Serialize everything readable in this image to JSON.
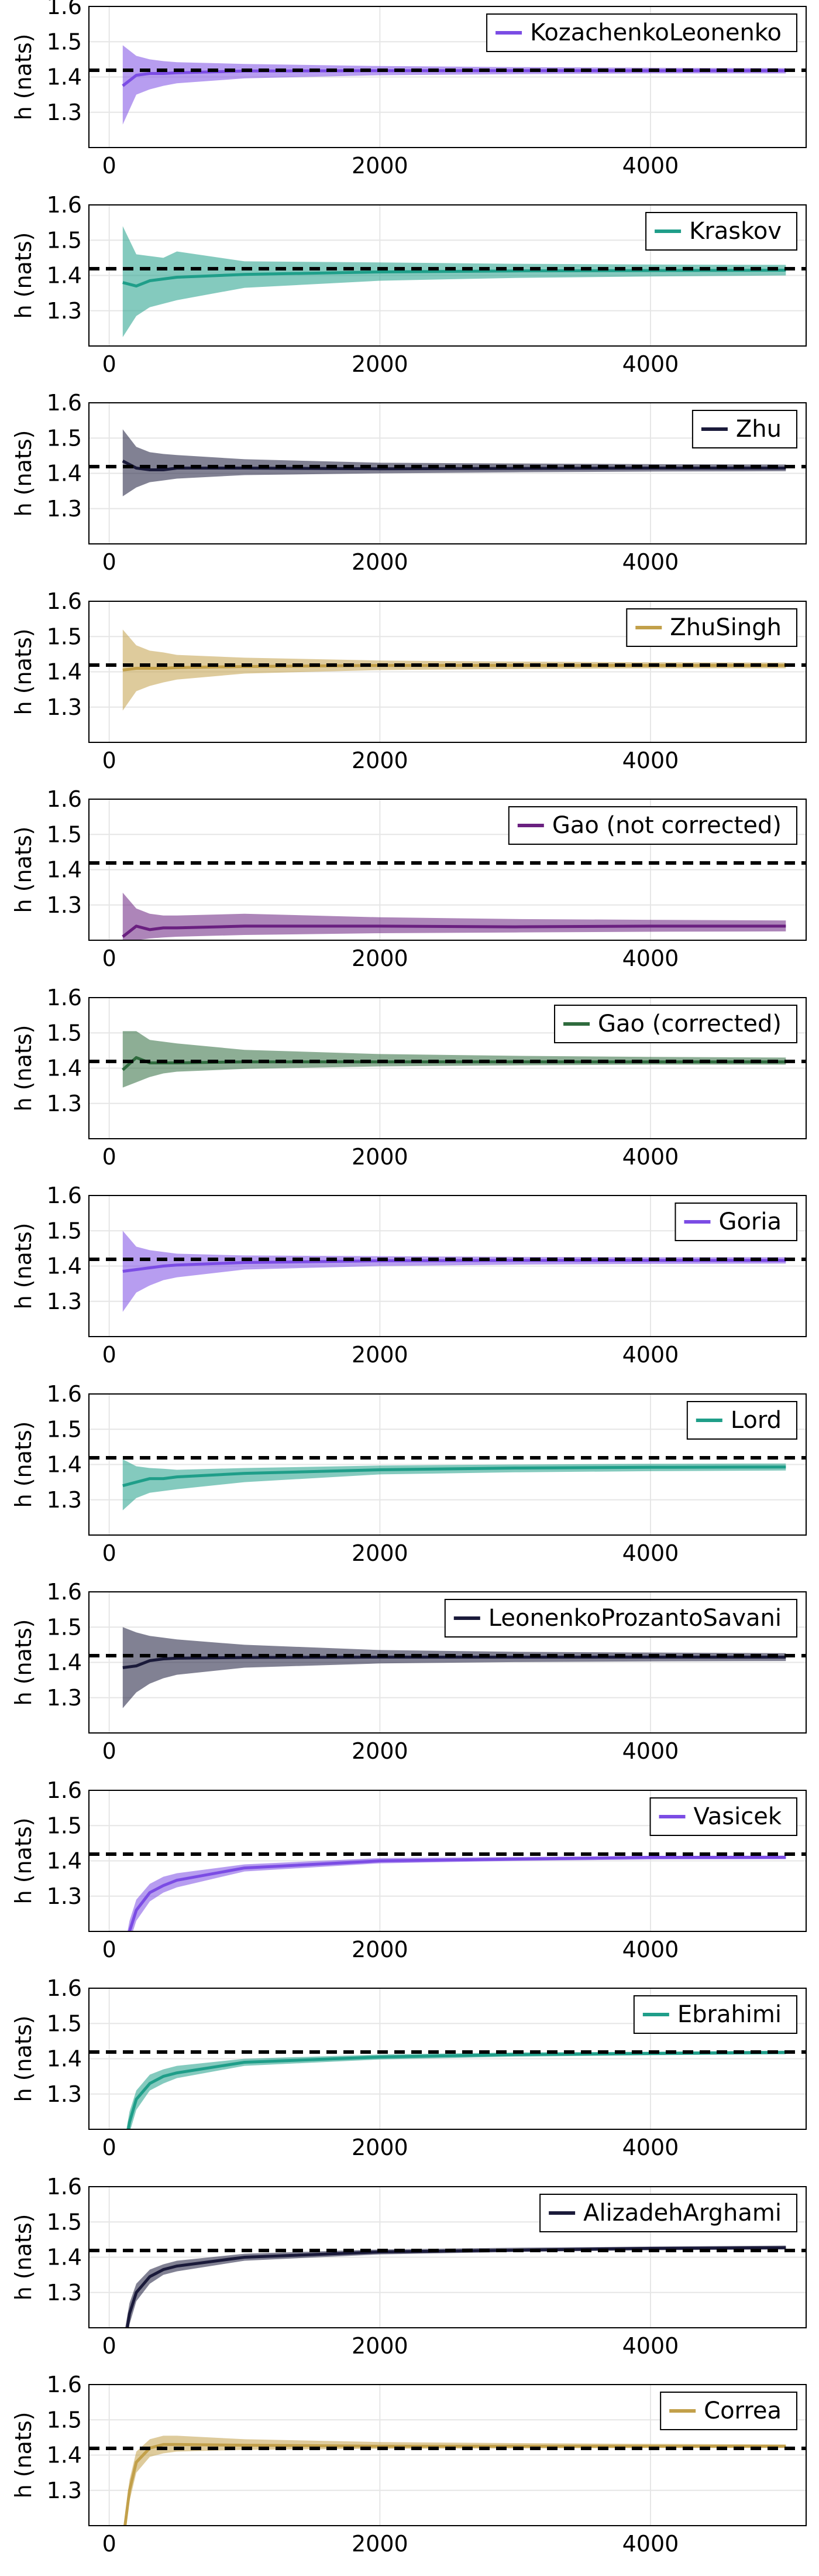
{
  "chart_data": [
    {
      "type": "line",
      "ylabel": "h (nats)",
      "xlim": [
        -150,
        5150
      ],
      "ylim": [
        1.2,
        1.6
      ],
      "xticks": [
        0,
        2000,
        4000
      ],
      "yticks": [
        1.3,
        1.4,
        1.5,
        1.6
      ],
      "reference_value": 1.419,
      "color": "#7b4ce4",
      "series": [
        {
          "name": "KozachenkoLeonenko",
          "x": [
            100,
            200,
            300,
            400,
            500,
            1000,
            2000,
            3000,
            4000,
            5000
          ],
          "y": [
            1.375,
            1.405,
            1.41,
            1.41,
            1.412,
            1.417,
            1.418,
            1.418,
            1.418,
            1.418
          ],
          "lower": [
            1.265,
            1.35,
            1.365,
            1.375,
            1.382,
            1.396,
            1.405,
            1.408,
            1.41,
            1.41
          ],
          "upper": [
            1.49,
            1.46,
            1.45,
            1.445,
            1.442,
            1.437,
            1.431,
            1.428,
            1.426,
            1.425
          ]
        }
      ]
    },
    {
      "type": "line",
      "ylabel": "h (nats)",
      "xlim": [
        -150,
        5150
      ],
      "ylim": [
        1.2,
        1.6
      ],
      "xticks": [
        0,
        2000,
        4000
      ],
      "yticks": [
        1.3,
        1.4,
        1.5,
        1.6
      ],
      "reference_value": 1.419,
      "color": "#1f9e89",
      "series": [
        {
          "name": "Kraskov",
          "x": [
            100,
            200,
            300,
            400,
            500,
            1000,
            2000,
            3000,
            4000,
            5000
          ],
          "y": [
            1.38,
            1.37,
            1.385,
            1.39,
            1.395,
            1.403,
            1.41,
            1.413,
            1.414,
            1.415
          ],
          "lower": [
            1.225,
            1.285,
            1.31,
            1.32,
            1.33,
            1.365,
            1.385,
            1.393,
            1.397,
            1.4
          ],
          "upper": [
            1.54,
            1.46,
            1.455,
            1.45,
            1.468,
            1.44,
            1.437,
            1.433,
            1.431,
            1.43
          ]
        }
      ]
    },
    {
      "type": "line",
      "ylabel": "h (nats)",
      "xlim": [
        -150,
        5150
      ],
      "ylim": [
        1.2,
        1.6
      ],
      "xticks": [
        0,
        2000,
        4000
      ],
      "yticks": [
        1.3,
        1.4,
        1.5,
        1.6
      ],
      "reference_value": 1.419,
      "color": "#1a1a3a",
      "series": [
        {
          "name": "Zhu",
          "x": [
            100,
            200,
            300,
            400,
            500,
            1000,
            2000,
            3000,
            4000,
            5000
          ],
          "y": [
            1.435,
            1.415,
            1.41,
            1.41,
            1.415,
            1.415,
            1.413,
            1.414,
            1.415,
            1.415
          ],
          "lower": [
            1.335,
            1.36,
            1.375,
            1.38,
            1.385,
            1.395,
            1.4,
            1.403,
            1.405,
            1.406
          ],
          "upper": [
            1.525,
            1.475,
            1.46,
            1.455,
            1.452,
            1.44,
            1.43,
            1.428,
            1.426,
            1.425
          ]
        }
      ]
    },
    {
      "type": "line",
      "ylabel": "h (nats)",
      "xlim": [
        -150,
        5150
      ],
      "ylim": [
        1.2,
        1.6
      ],
      "xticks": [
        0,
        2000,
        4000
      ],
      "yticks": [
        1.3,
        1.4,
        1.5,
        1.6
      ],
      "reference_value": 1.419,
      "color": "#c2a04a",
      "series": [
        {
          "name": "ZhuSingh",
          "x": [
            100,
            200,
            300,
            400,
            500,
            1000,
            2000,
            3000,
            4000,
            5000
          ],
          "y": [
            1.405,
            1.41,
            1.41,
            1.41,
            1.412,
            1.415,
            1.418,
            1.418,
            1.418,
            1.418
          ],
          "lower": [
            1.29,
            1.345,
            1.36,
            1.37,
            1.378,
            1.395,
            1.405,
            1.408,
            1.41,
            1.41
          ],
          "upper": [
            1.52,
            1.475,
            1.46,
            1.455,
            1.448,
            1.44,
            1.432,
            1.429,
            1.427,
            1.426
          ]
        }
      ]
    },
    {
      "type": "line",
      "ylabel": "h (nats)",
      "xlim": [
        -150,
        5150
      ],
      "ylim": [
        1.2,
        1.6
      ],
      "xticks": [
        0,
        2000,
        4000
      ],
      "yticks": [
        1.3,
        1.4,
        1.5,
        1.6
      ],
      "reference_value": 1.419,
      "color": "#6a2080",
      "series": [
        {
          "name": "Gao (not corrected)",
          "x": [
            100,
            200,
            300,
            400,
            500,
            1000,
            2000,
            3000,
            4000,
            5000
          ],
          "y": [
            1.21,
            1.24,
            1.23,
            1.235,
            1.235,
            1.24,
            1.24,
            1.238,
            1.24,
            1.24
          ],
          "lower": [
            1.195,
            1.2,
            1.205,
            1.208,
            1.21,
            1.215,
            1.22,
            1.222,
            1.224,
            1.225
          ],
          "upper": [
            1.335,
            1.29,
            1.275,
            1.27,
            1.27,
            1.275,
            1.265,
            1.26,
            1.258,
            1.256
          ]
        }
      ]
    },
    {
      "type": "line",
      "ylabel": "h (nats)",
      "xlim": [
        -150,
        5150
      ],
      "ylim": [
        1.2,
        1.6
      ],
      "xticks": [
        0,
        2000,
        4000
      ],
      "yticks": [
        1.3,
        1.4,
        1.5,
        1.6
      ],
      "reference_value": 1.419,
      "color": "#2f6b3e",
      "series": [
        {
          "name": "Gao (corrected)",
          "x": [
            100,
            200,
            300,
            400,
            500,
            1000,
            2000,
            3000,
            4000,
            5000
          ],
          "y": [
            1.395,
            1.43,
            1.415,
            1.415,
            1.415,
            1.418,
            1.418,
            1.418,
            1.418,
            1.418
          ],
          "lower": [
            1.345,
            1.36,
            1.375,
            1.385,
            1.39,
            1.398,
            1.405,
            1.408,
            1.41,
            1.41
          ],
          "upper": [
            1.505,
            1.505,
            1.48,
            1.475,
            1.47,
            1.452,
            1.44,
            1.435,
            1.432,
            1.43
          ]
        }
      ]
    },
    {
      "type": "line",
      "ylabel": "h (nats)",
      "xlim": [
        -150,
        5150
      ],
      "ylim": [
        1.2,
        1.6
      ],
      "xticks": [
        0,
        2000,
        4000
      ],
      "yticks": [
        1.3,
        1.4,
        1.5,
        1.6
      ],
      "reference_value": 1.419,
      "color": "#7b4ce4",
      "series": [
        {
          "name": "Goria",
          "x": [
            100,
            200,
            300,
            400,
            500,
            1000,
            2000,
            3000,
            4000,
            5000
          ],
          "y": [
            1.385,
            1.39,
            1.395,
            1.4,
            1.403,
            1.41,
            1.415,
            1.416,
            1.416,
            1.416
          ],
          "lower": [
            1.27,
            1.325,
            1.345,
            1.36,
            1.368,
            1.39,
            1.4,
            1.404,
            1.406,
            1.407
          ],
          "upper": [
            1.5,
            1.455,
            1.445,
            1.44,
            1.435,
            1.43,
            1.428,
            1.426,
            1.425,
            1.425
          ]
        }
      ]
    },
    {
      "type": "line",
      "ylabel": "h (nats)",
      "xlim": [
        -150,
        5150
      ],
      "ylim": [
        1.2,
        1.6
      ],
      "xticks": [
        0,
        2000,
        4000
      ],
      "yticks": [
        1.3,
        1.4,
        1.5,
        1.6
      ],
      "reference_value": 1.419,
      "color": "#1f9e89",
      "series": [
        {
          "name": "Lord",
          "x": [
            100,
            200,
            300,
            400,
            500,
            1000,
            2000,
            3000,
            4000,
            5000
          ],
          "y": [
            1.34,
            1.35,
            1.36,
            1.36,
            1.365,
            1.375,
            1.385,
            1.39,
            1.392,
            1.393
          ],
          "lower": [
            1.27,
            1.305,
            1.32,
            1.325,
            1.33,
            1.35,
            1.372,
            1.378,
            1.381,
            1.383
          ],
          "upper": [
            1.415,
            1.395,
            1.39,
            1.388,
            1.385,
            1.39,
            1.397,
            1.4,
            1.402,
            1.403
          ]
        }
      ]
    },
    {
      "type": "line",
      "ylabel": "h (nats)",
      "xlim": [
        -150,
        5150
      ],
      "ylim": [
        1.2,
        1.6
      ],
      "xticks": [
        0,
        2000,
        4000
      ],
      "yticks": [
        1.3,
        1.4,
        1.5,
        1.6
      ],
      "reference_value": 1.419,
      "color": "#1a1a3a",
      "series": [
        {
          "name": "LeonenkoProzantoSavani",
          "x": [
            100,
            200,
            300,
            400,
            500,
            1000,
            2000,
            3000,
            4000,
            5000
          ],
          "y": [
            1.385,
            1.39,
            1.405,
            1.41,
            1.412,
            1.414,
            1.415,
            1.415,
            1.415,
            1.415
          ],
          "lower": [
            1.27,
            1.315,
            1.34,
            1.355,
            1.365,
            1.385,
            1.397,
            1.401,
            1.403,
            1.404
          ],
          "upper": [
            1.5,
            1.485,
            1.475,
            1.47,
            1.465,
            1.45,
            1.435,
            1.43,
            1.428,
            1.426
          ]
        }
      ]
    },
    {
      "type": "line",
      "ylabel": "h (nats)",
      "xlim": [
        -150,
        5150
      ],
      "ylim": [
        1.2,
        1.6
      ],
      "xticks": [
        0,
        2000,
        4000
      ],
      "yticks": [
        1.3,
        1.4,
        1.5,
        1.6
      ],
      "reference_value": 1.419,
      "color": "#7b4ce4",
      "series": [
        {
          "name": "Vasicek",
          "x": [
            100,
            150,
            200,
            300,
            400,
            500,
            1000,
            2000,
            3000,
            4000,
            5000
          ],
          "y": [
            1.09,
            1.2,
            1.26,
            1.31,
            1.33,
            1.345,
            1.38,
            1.4,
            1.405,
            1.41,
            1.41
          ],
          "lower": [
            1.05,
            1.17,
            1.23,
            1.285,
            1.31,
            1.325,
            1.37,
            1.393,
            1.4,
            1.404,
            1.405
          ],
          "upper": [
            1.13,
            1.23,
            1.29,
            1.335,
            1.355,
            1.365,
            1.39,
            1.408,
            1.411,
            1.414,
            1.415
          ]
        }
      ]
    },
    {
      "type": "line",
      "ylabel": "h (nats)",
      "xlim": [
        -150,
        5150
      ],
      "ylim": [
        1.2,
        1.6
      ],
      "xticks": [
        0,
        2000,
        4000
      ],
      "yticks": [
        1.3,
        1.4,
        1.5,
        1.6
      ],
      "reference_value": 1.419,
      "color": "#1f9e89",
      "series": [
        {
          "name": "Ebrahimi",
          "x": [
            100,
            150,
            200,
            300,
            400,
            500,
            1000,
            2000,
            3000,
            4000,
            5000
          ],
          "y": [
            1.1,
            1.22,
            1.285,
            1.33,
            1.35,
            1.36,
            1.39,
            1.405,
            1.412,
            1.415,
            1.418
          ],
          "lower": [
            1.06,
            1.19,
            1.255,
            1.31,
            1.33,
            1.345,
            1.38,
            1.398,
            1.406,
            1.41,
            1.413
          ],
          "upper": [
            1.14,
            1.25,
            1.31,
            1.355,
            1.37,
            1.38,
            1.4,
            1.412,
            1.418,
            1.42,
            1.423
          ]
        }
      ]
    },
    {
      "type": "line",
      "ylabel": "h (nats)",
      "xlim": [
        -150,
        5150
      ],
      "ylim": [
        1.2,
        1.6
      ],
      "xticks": [
        0,
        2000,
        4000
      ],
      "yticks": [
        1.3,
        1.4,
        1.5,
        1.6
      ],
      "reference_value": 1.419,
      "color": "#1a1a3a",
      "series": [
        {
          "name": "AlizadehArghami",
          "x": [
            100,
            150,
            200,
            300,
            400,
            500,
            1000,
            2000,
            3000,
            4000,
            5000
          ],
          "y": [
            1.12,
            1.24,
            1.3,
            1.345,
            1.365,
            1.375,
            1.4,
            1.415,
            1.42,
            1.425,
            1.427
          ],
          "lower": [
            1.08,
            1.21,
            1.275,
            1.325,
            1.35,
            1.36,
            1.39,
            1.408,
            1.415,
            1.42,
            1.422
          ],
          "upper": [
            1.16,
            1.27,
            1.325,
            1.365,
            1.38,
            1.39,
            1.41,
            1.422,
            1.427,
            1.43,
            1.433
          ]
        }
      ]
    },
    {
      "type": "line",
      "ylabel": "h (nats)",
      "xlim": [
        -150,
        5150
      ],
      "ylim": [
        1.2,
        1.6
      ],
      "xticks": [
        0,
        2000,
        4000
      ],
      "yticks": [
        1.3,
        1.4,
        1.5,
        1.6
      ],
      "reference_value": 1.419,
      "color": "#c2a04a",
      "series": [
        {
          "name": "Correa",
          "x": [
            100,
            150,
            200,
            300,
            400,
            500,
            1000,
            2000,
            3000,
            4000,
            5000
          ],
          "y": [
            1.15,
            1.3,
            1.38,
            1.42,
            1.43,
            1.43,
            1.428,
            1.425,
            1.425,
            1.425,
            1.425
          ],
          "lower": [
            1.12,
            1.27,
            1.35,
            1.395,
            1.405,
            1.41,
            1.415,
            1.418,
            1.419,
            1.42,
            1.42
          ],
          "upper": [
            1.18,
            1.33,
            1.41,
            1.445,
            1.455,
            1.455,
            1.445,
            1.437,
            1.434,
            1.432,
            1.43
          ]
        }
      ]
    }
  ]
}
